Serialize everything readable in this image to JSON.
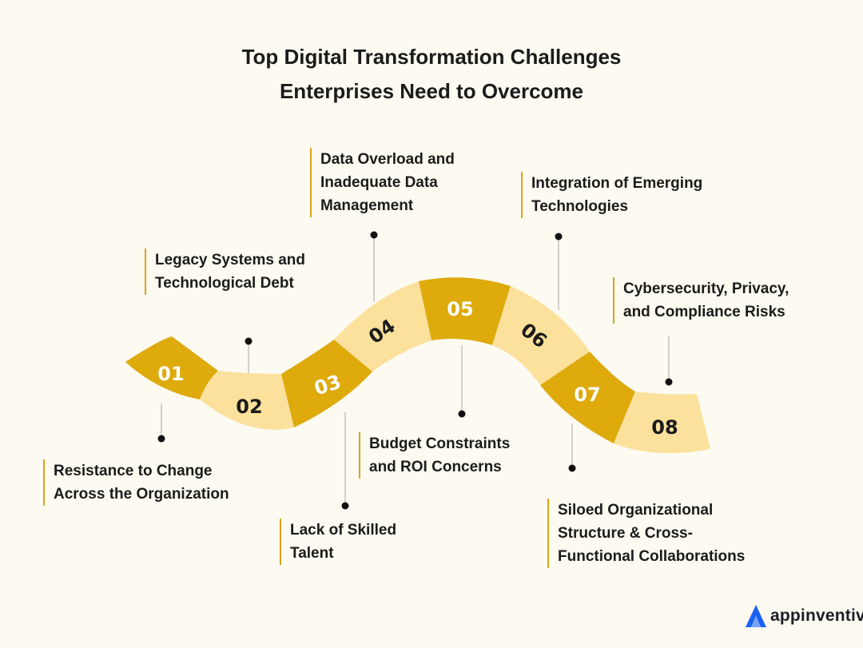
{
  "title": {
    "line1": "Top Digital Transformation Challenges",
    "line2": "Enterprises Need to Overcome"
  },
  "colors": {
    "dark_segment": "#deaa0c",
    "light_segment": "#fbe19c",
    "accent_line": "#d9a514",
    "background": "#fcfaf1",
    "logo_blue": "#1c62f0"
  },
  "steps": [
    {
      "number": "01",
      "lines": [
        "Resistance to Change",
        "Across the Organization"
      ]
    },
    {
      "number": "02",
      "lines": [
        "Legacy Systems and",
        "Technological Debt"
      ]
    },
    {
      "number": "03",
      "lines": [
        "Lack of Skilled",
        "Talent"
      ]
    },
    {
      "number": "04",
      "lines": [
        "Data Overload and",
        "Inadequate Data",
        "Management"
      ]
    },
    {
      "number": "05",
      "lines": [
        "Budget Constraints",
        "and ROI Concerns"
      ]
    },
    {
      "number": "06",
      "lines": [
        "Integration of Emerging",
        "Technologies"
      ]
    },
    {
      "number": "07",
      "lines": [
        "Siloed Organizational",
        "Structure & Cross-",
        "Functional Collaborations"
      ]
    },
    {
      "number": "08",
      "lines": [
        "Cybersecurity, Privacy,",
        "and Compliance Risks"
      ]
    }
  ],
  "logo": {
    "text": "appinventiv",
    "icon": "appinventiv-logo-icon"
  }
}
